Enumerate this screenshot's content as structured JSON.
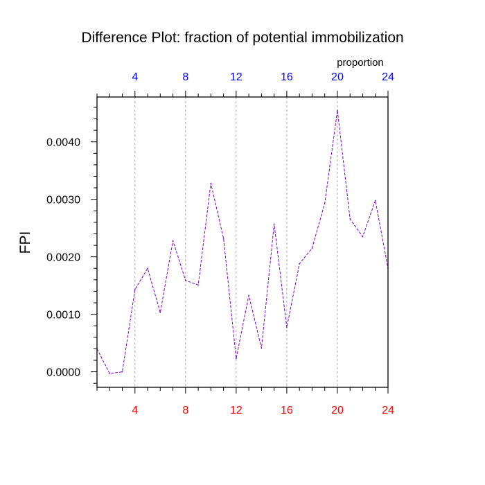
{
  "chart_data": {
    "type": "line",
    "title": "Difference Plot: fraction of potential immobilization",
    "xlabel": "",
    "ylabel": "FPI",
    "top_axis_label": "proportion",
    "xlim": [
      1,
      24
    ],
    "ylim": [
      -0.00027,
      0.00478
    ],
    "x_ticks": [
      4,
      8,
      12,
      16,
      20,
      24
    ],
    "x_tick_labels": [
      "4",
      "8",
      "12",
      "16",
      "20",
      "24"
    ],
    "y_ticks": [
      0.0,
      0.001,
      0.002,
      0.003,
      0.004
    ],
    "y_tick_labels": [
      "0.0000",
      "0.0010",
      "0.0020",
      "0.0030",
      "0.0040"
    ],
    "grid": "vertical dashed at x ticks",
    "x": [
      1,
      2,
      3,
      4,
      5,
      6,
      7,
      8,
      9,
      10,
      11,
      12,
      13,
      14,
      15,
      16,
      17,
      18,
      19,
      20,
      21,
      22,
      23,
      24
    ],
    "series": [
      {
        "values": [
          0.0004,
          -3e-05,
          0.0,
          0.00143,
          0.0018,
          0.00103,
          0.00228,
          0.00159,
          0.00151,
          0.00328,
          0.00232,
          0.00023,
          0.00133,
          0.00041,
          0.00257,
          0.00077,
          0.00188,
          0.00215,
          0.00293,
          0.00455,
          0.00266,
          0.00235,
          0.00298,
          0.0018
        ],
        "color": "#7b00c8"
      }
    ],
    "colors": {
      "axis": "#000000",
      "top_tick_labels": "#0000ff",
      "bottom_tick_labels": "#ff0000",
      "grid": "#aaaaaa"
    }
  }
}
